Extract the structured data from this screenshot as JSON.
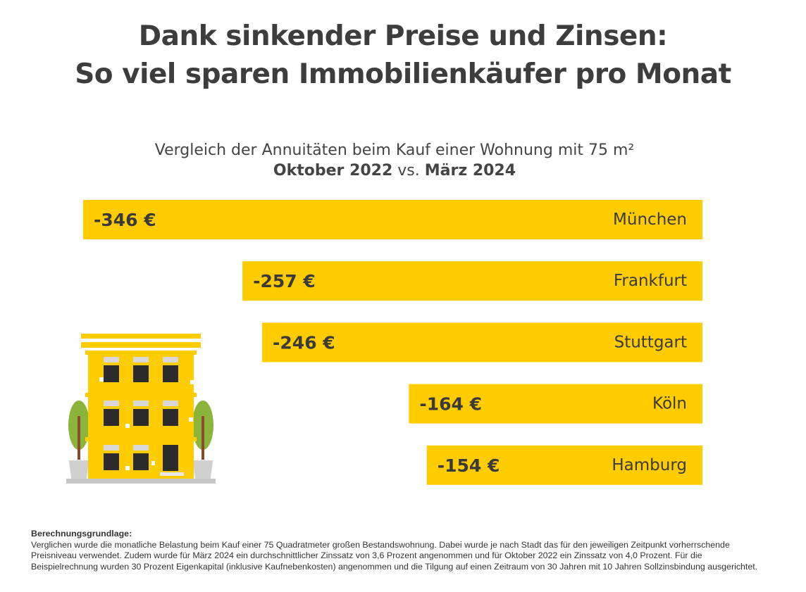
{
  "title": {
    "line1": "Dank sinkender Preise und Zinsen:",
    "line2": "So viel sparen Immobilienkäufer pro Monat"
  },
  "subtitle": {
    "line1": "Vergleich der Annuitäten beim Kauf einer Wohnung mit 75 m²",
    "period_from": "Oktober 2022",
    "vs": " vs. ",
    "period_to": "März 2024"
  },
  "chart_data": {
    "type": "bar",
    "orientation": "horizontal",
    "categories": [
      "München",
      "Frankfurt",
      "Stuttgart",
      "Köln",
      "Hamburg"
    ],
    "values": [
      -346,
      -257,
      -246,
      -164,
      -154
    ],
    "value_labels": [
      "-346 €",
      "-257 €",
      "-246 €",
      "-164 €",
      "-154 €"
    ],
    "unit": "€",
    "bar_color": "#FFCC00",
    "bar_alignment": "right",
    "xlim": [
      -346,
      0
    ],
    "grid": false
  },
  "footnote": {
    "heading": "Berechnungsgrundlage:",
    "text": "Verglichen wurde die monatliche Belastung beim Kauf einer 75 Quadratmeter großen Bestandswohnung. Dabei wurde je nach Stadt das für den jeweiligen Zeitpunkt vorherrschende Preisniveau verwendet. Zudem wurde für März 2024 ein durchschnittlicher Zinssatz von 3,6 Prozent angenommen und für Oktober 2022 ein Zinssatz von 4,0 Prozent. Für die Beispielrechnung wurden 30 Prozent Eigenkapital (inklusive Kaufnebenkosten) angenommen und die Tilgung auf einen Zeitraum von 30 Jahren mit 10 Jahren Sollzinsbindung ausgerichtet."
  },
  "colors": {
    "accent": "#FFCC00",
    "text": "#3a3a3a",
    "window": "#2b2b2b",
    "tree": "#8bb53a",
    "trunk": "#8a4b2a",
    "base": "#c8c8c8"
  },
  "icons": [
    "apartment-building-icon",
    "tree-icon"
  ]
}
